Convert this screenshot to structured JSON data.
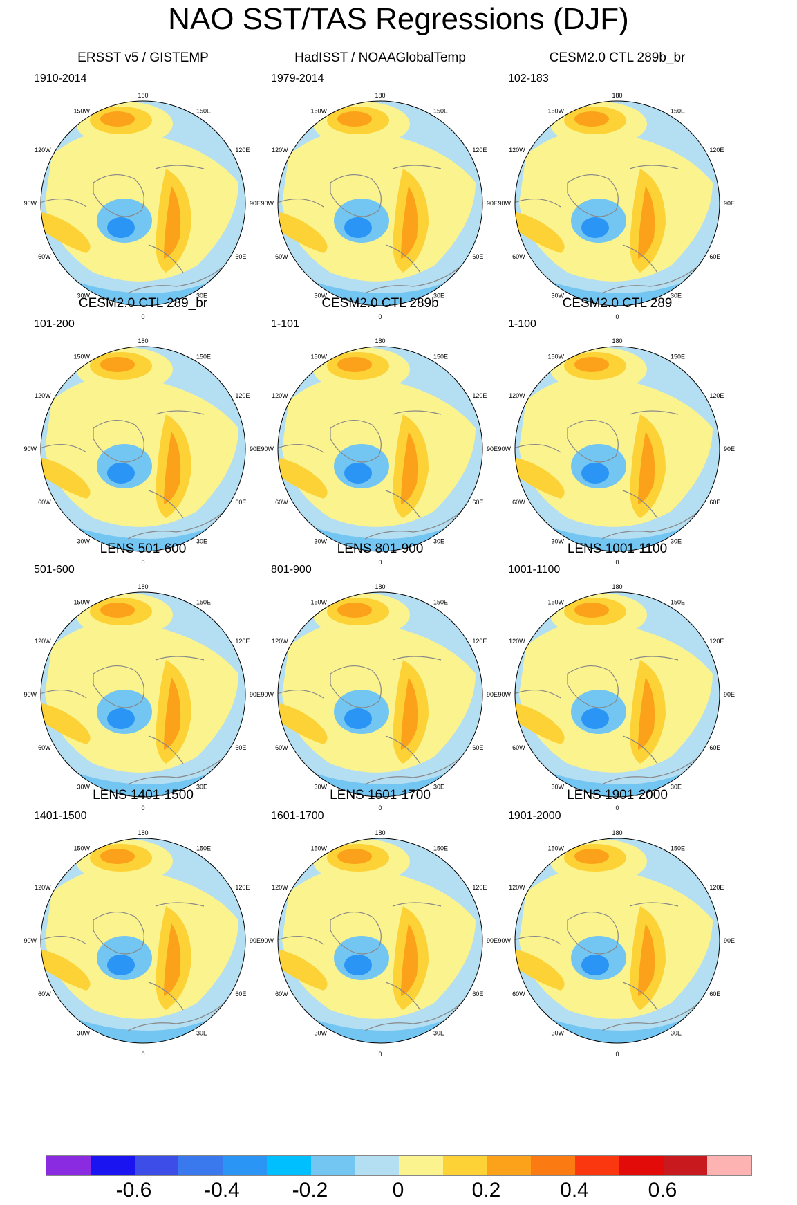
{
  "title": "NAO SST/TAS Regressions (DJF)",
  "lon_labels": {
    "n": "180",
    "nw": "150W",
    "ne": "150E",
    "w1": "120W",
    "e1": "120E",
    "w2": "90W",
    "e2": "90E",
    "w3": "60W",
    "e3": "60E",
    "sw": "30W",
    "se": "30E",
    "s": "0"
  },
  "panels": [
    {
      "title": "ERSST v5 / GISTEMP",
      "period": "1910-2014"
    },
    {
      "title": "HadISST / NOAAGlobalTemp",
      "period": "1979-2014"
    },
    {
      "title": "CESM2.0 CTL 289b_br",
      "period": "102-183"
    },
    {
      "title": "CESM2.0 CTL 289_br",
      "period": "101-200"
    },
    {
      "title": "CESM2.0 CTL 289b",
      "period": "1-101"
    },
    {
      "title": "CESM2.0 CTL 289",
      "period": "1-100"
    },
    {
      "title": "LENS 501-600",
      "period": "501-600"
    },
    {
      "title": "LENS 801-900",
      "period": "801-900"
    },
    {
      "title": "LENS 1001-1100",
      "period": "1001-1100"
    },
    {
      "title": "LENS 1401-1500",
      "period": "1401-1500"
    },
    {
      "title": "LENS 1601-1700",
      "period": "1601-1700"
    },
    {
      "title": "LENS 1901-2000",
      "period": "1901-2000"
    }
  ],
  "colorbar": {
    "colors": [
      "#8a2be2",
      "#1a14f0",
      "#3c4de8",
      "#3a78ee",
      "#2a95f4",
      "#00bfff",
      "#74c6f2",
      "#b4def2",
      "#fbf38e",
      "#fdd237",
      "#fba21a",
      "#fb7a12",
      "#fb3710",
      "#e30a0a",
      "#c81a1e",
      "#fcb3b2"
    ],
    "labels": [
      "-0.6",
      "-0.4",
      "-0.2",
      "0",
      "0.2",
      "0.4",
      "0.6"
    ]
  },
  "palette": {
    "ocean": "#b4def2",
    "pos1": "#fbf38e",
    "pos2": "#fdd237",
    "pos3": "#fba21a",
    "neg1": "#74c6f2",
    "neg2": "#2a95f4",
    "land": "#ffffff",
    "coast": "#888888"
  }
}
